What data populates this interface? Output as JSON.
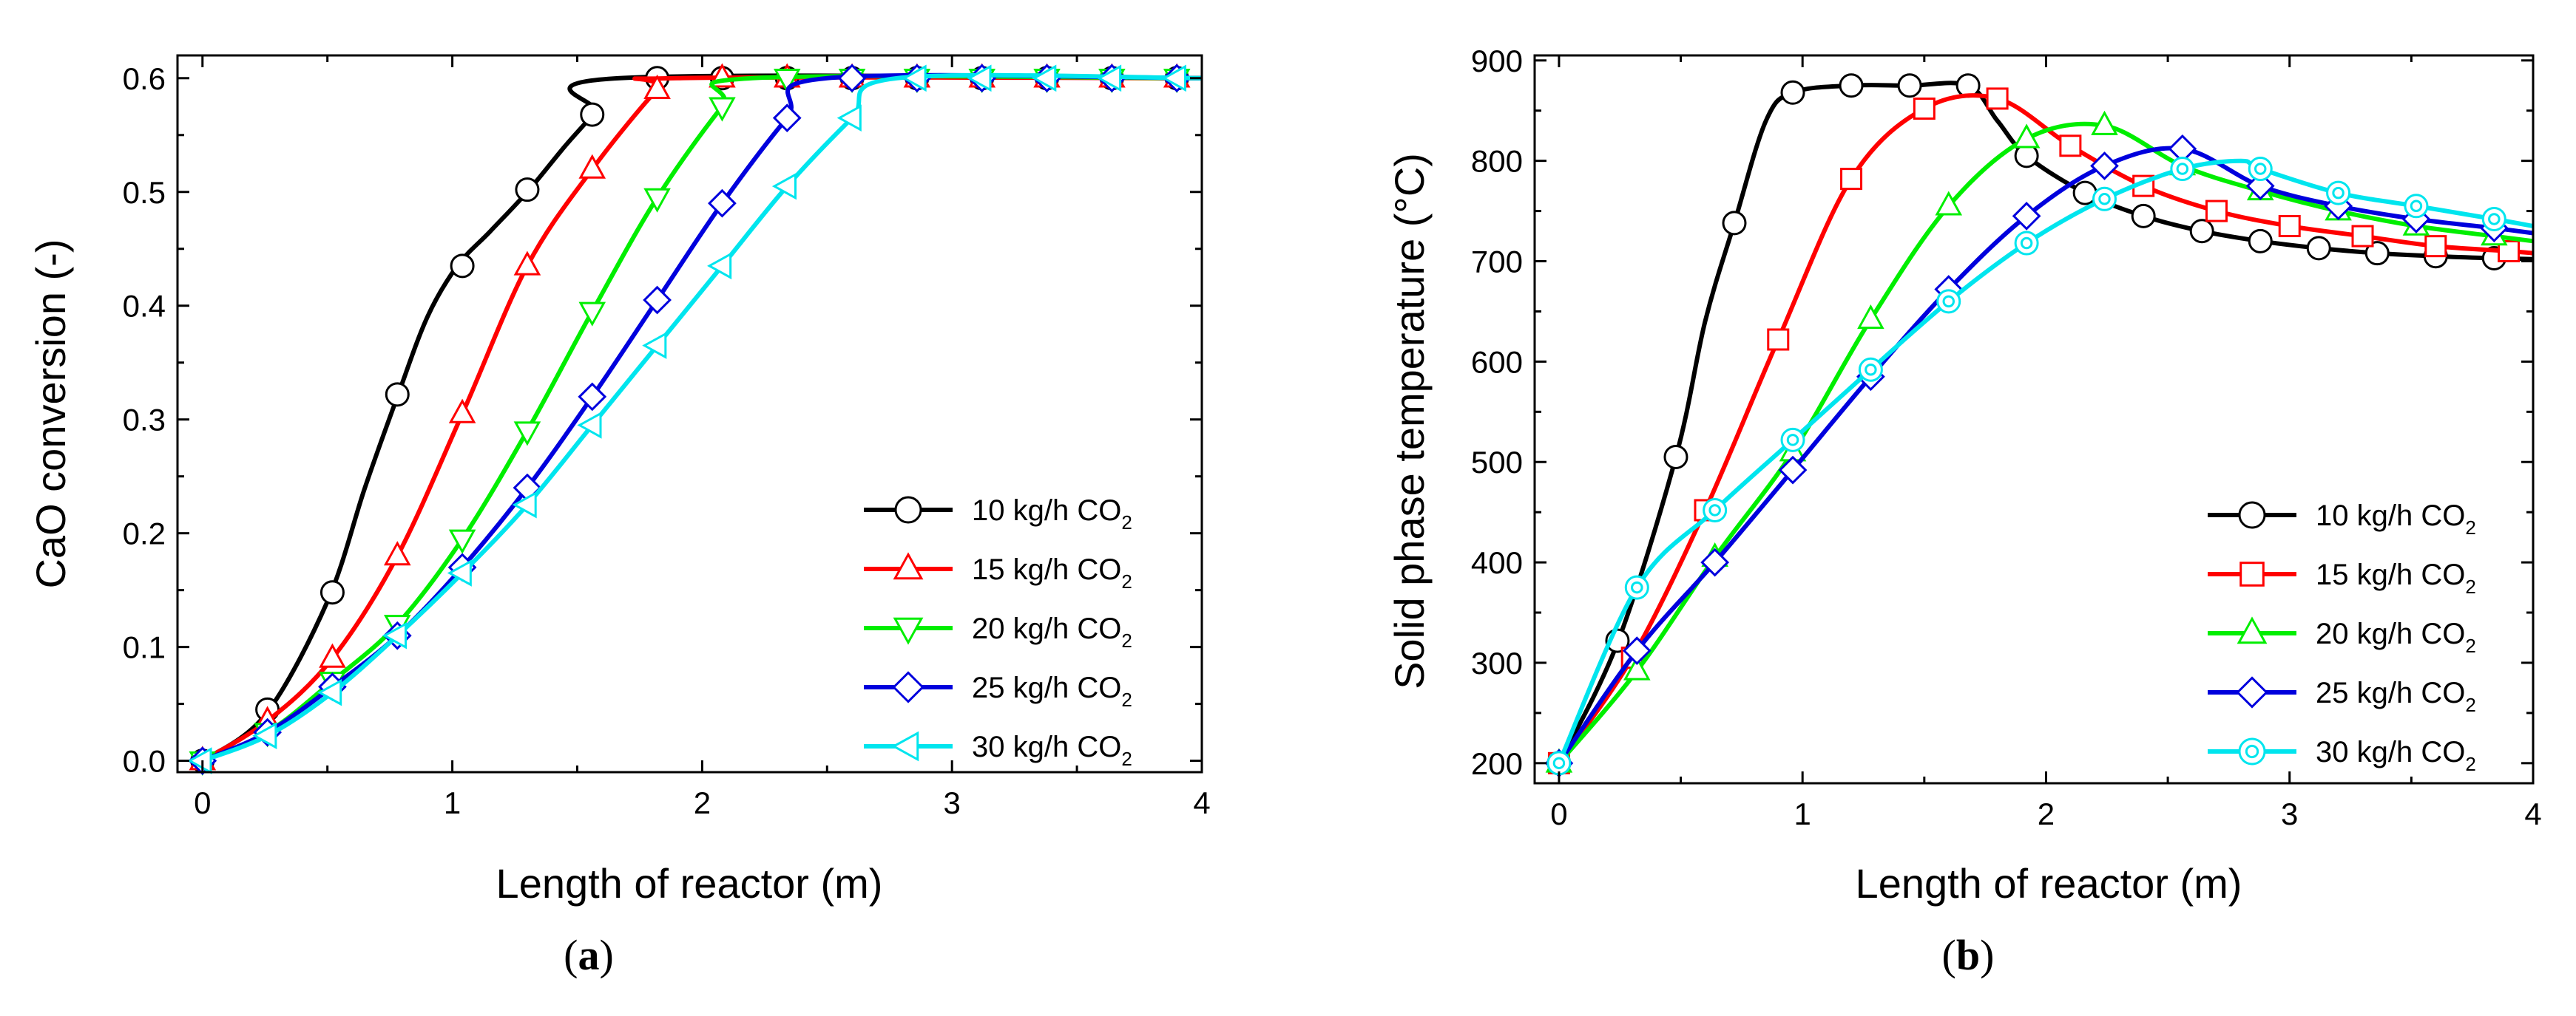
{
  "chart_data": [
    {
      "type": "line",
      "panel": "a",
      "panel_label": "a",
      "xlabel": "Length of reactor (m)",
      "ylabel": "CaO conversion (-)",
      "xlim": [
        -0.1,
        4.0
      ],
      "ylim": [
        -0.01,
        0.62
      ],
      "xticks": [
        0,
        1,
        2,
        3,
        4
      ],
      "xtick_labels": [
        "0",
        "1",
        "2",
        "3",
        "4"
      ],
      "yticks": [
        0.0,
        0.1,
        0.2,
        0.3,
        0.4,
        0.5,
        0.6
      ],
      "ytick_labels": [
        "0.0",
        "0.1",
        "0.2",
        "0.3",
        "0.4",
        "0.5",
        "0.6"
      ],
      "legend_position": "bottom-right",
      "series": [
        {
          "name": "10 kg/h CO",
          "name_sub": "2",
          "color": "#000000",
          "marker": "circle",
          "curve": [
            [
              0,
              0
            ],
            [
              0.25,
              0.04
            ],
            [
              0.5,
              0.14
            ],
            [
              0.65,
              0.24
            ],
            [
              0.78,
              0.32
            ],
            [
              0.9,
              0.39
            ],
            [
              1.02,
              0.435
            ],
            [
              1.15,
              0.465
            ],
            [
              1.3,
              0.5
            ],
            [
              1.45,
              0.54
            ],
            [
              1.57,
              0.57
            ],
            [
              1.67,
              0.6
            ],
            [
              4,
              0.6
            ]
          ],
          "marker_x": [
            0,
            0.26,
            0.52,
            0.78,
            1.04,
            1.3,
            1.56,
            1.82,
            2.08,
            2.34,
            2.6,
            2.86,
            3.12,
            3.38,
            3.64,
            3.9
          ],
          "marker_y": [
            0,
            0.045,
            0.148,
            0.322,
            0.435,
            0.502,
            0.568,
            0.6,
            0.6,
            0.6,
            0.6,
            0.6,
            0.6,
            0.6,
            0.6,
            0.6
          ]
        },
        {
          "name": "15 kg/h CO",
          "name_sub": "2",
          "color": "#ff0000",
          "marker": "triangle-up",
          "curve": [
            [
              0,
              0
            ],
            [
              0.26,
              0.035
            ],
            [
              0.52,
              0.09
            ],
            [
              0.78,
              0.18
            ],
            [
              1.04,
              0.305
            ],
            [
              1.3,
              0.435
            ],
            [
              1.56,
              0.52
            ],
            [
              1.82,
              0.59
            ],
            [
              1.9,
              0.6
            ],
            [
              4,
              0.6
            ]
          ],
          "marker_x": [
            0,
            0.26,
            0.52,
            0.78,
            1.04,
            1.3,
            1.56,
            1.82,
            2.08,
            2.34,
            2.6,
            2.86,
            3.12,
            3.38,
            3.64,
            3.9
          ],
          "marker_y": [
            0,
            0.035,
            0.09,
            0.18,
            0.305,
            0.435,
            0.52,
            0.59,
            0.6,
            0.6,
            0.6,
            0.6,
            0.6,
            0.6,
            0.6,
            0.6
          ]
        },
        {
          "name": "20 kg/h CO",
          "name_sub": "2",
          "color": "#00ee00",
          "marker": "triangle-down",
          "curve": [
            [
              0,
              0
            ],
            [
              0.26,
              0.025
            ],
            [
              0.52,
              0.07
            ],
            [
              0.78,
              0.12
            ],
            [
              1.04,
              0.195
            ],
            [
              1.3,
              0.29
            ],
            [
              1.56,
              0.395
            ],
            [
              1.82,
              0.495
            ],
            [
              2.08,
              0.575
            ],
            [
              2.2,
              0.6
            ],
            [
              4,
              0.6
            ]
          ],
          "marker_x": [
            0,
            0.26,
            0.52,
            0.78,
            1.04,
            1.3,
            1.56,
            1.82,
            2.08,
            2.34,
            2.6,
            2.86,
            3.12,
            3.38,
            3.64,
            3.9
          ],
          "marker_y": [
            0,
            0.025,
            0.07,
            0.12,
            0.195,
            0.29,
            0.395,
            0.495,
            0.575,
            0.6,
            0.6,
            0.6,
            0.6,
            0.6,
            0.6,
            0.6
          ]
        },
        {
          "name": "25 kg/h CO",
          "name_sub": "2",
          "color": "#0000dd",
          "marker": "diamond",
          "curve": [
            [
              0,
              0
            ],
            [
              0.26,
              0.025
            ],
            [
              0.52,
              0.065
            ],
            [
              0.78,
              0.11
            ],
            [
              1.04,
              0.17
            ],
            [
              1.3,
              0.24
            ],
            [
              1.56,
              0.32
            ],
            [
              1.82,
              0.405
            ],
            [
              2.08,
              0.49
            ],
            [
              2.34,
              0.565
            ],
            [
              2.5,
              0.6
            ],
            [
              4,
              0.6
            ]
          ],
          "marker_x": [
            0,
            0.26,
            0.52,
            0.78,
            1.04,
            1.3,
            1.56,
            1.82,
            2.08,
            2.34,
            2.6,
            2.86,
            3.12,
            3.38,
            3.64,
            3.9
          ],
          "marker_y": [
            0,
            0.025,
            0.065,
            0.11,
            0.17,
            0.24,
            0.32,
            0.405,
            0.49,
            0.565,
            0.6,
            0.6,
            0.6,
            0.6,
            0.6,
            0.6
          ]
        },
        {
          "name": "30 kg/h CO",
          "name_sub": "2",
          "color": "#00e5ee",
          "marker": "triangle-left",
          "curve": [
            [
              0,
              0
            ],
            [
              0.26,
              0.022
            ],
            [
              0.52,
              0.06
            ],
            [
              0.78,
              0.11
            ],
            [
              1.04,
              0.165
            ],
            [
              1.3,
              0.225
            ],
            [
              1.56,
              0.295
            ],
            [
              1.82,
              0.365
            ],
            [
              2.08,
              0.435
            ],
            [
              2.34,
              0.505
            ],
            [
              2.6,
              0.565
            ],
            [
              2.78,
              0.6
            ],
            [
              4,
              0.6
            ]
          ],
          "marker_x": [
            0,
            0.26,
            0.52,
            0.78,
            1.04,
            1.3,
            1.56,
            1.82,
            2.08,
            2.34,
            2.6,
            2.86,
            3.12,
            3.38,
            3.64,
            3.9
          ],
          "marker_y": [
            0,
            0.022,
            0.06,
            0.11,
            0.165,
            0.225,
            0.295,
            0.365,
            0.435,
            0.505,
            0.565,
            0.6,
            0.6,
            0.6,
            0.6,
            0.6
          ]
        }
      ]
    },
    {
      "type": "line",
      "panel": "b",
      "panel_label": "b",
      "xlabel": "Length of reactor (m)",
      "ylabel": "Solid phase temperature (°C)",
      "xlim": [
        -0.1,
        4.0
      ],
      "ylim": [
        180,
        905
      ],
      "xticks": [
        0,
        1,
        2,
        3,
        4
      ],
      "xtick_labels": [
        "0",
        "1",
        "2",
        "3",
        "4"
      ],
      "yticks": [
        200,
        300,
        400,
        500,
        600,
        700,
        800,
        900
      ],
      "ytick_labels": [
        "200",
        "300",
        "400",
        "500",
        "600",
        "700",
        "800",
        "900"
      ],
      "legend_position": "bottom-right",
      "series": [
        {
          "name": "10 kg/h CO",
          "name_sub": "2",
          "color": "#000000",
          "marker": "circle",
          "curve": [
            [
              0,
              200
            ],
            [
              0.24,
              320
            ],
            [
              0.48,
              505
            ],
            [
              0.6,
              640
            ],
            [
              0.72,
              738
            ],
            [
              0.85,
              840
            ],
            [
              0.96,
              868
            ],
            [
              1.2,
              875
            ],
            [
              1.44,
              875
            ],
            [
              1.68,
              875
            ],
            [
              1.8,
              840
            ],
            [
              1.92,
              805
            ],
            [
              2.16,
              768
            ],
            [
              2.4,
              745
            ],
            [
              2.64,
              730
            ],
            [
              2.88,
              720
            ],
            [
              3.12,
              713
            ],
            [
              3.36,
              708
            ],
            [
              3.6,
              705
            ],
            [
              3.84,
              703
            ],
            [
              4,
              702
            ]
          ],
          "marker_x": [
            0,
            0.24,
            0.48,
            0.72,
            0.96,
            1.2,
            1.44,
            1.68,
            1.92,
            2.16,
            2.4,
            2.64,
            2.88,
            3.12,
            3.36,
            3.6,
            3.84
          ],
          "marker_y": [
            200,
            322,
            505,
            738,
            868,
            875,
            875,
            875,
            805,
            768,
            745,
            730,
            720,
            713,
            708,
            705,
            703
          ]
        },
        {
          "name": "15 kg/h CO",
          "name_sub": "2",
          "color": "#ff0000",
          "marker": "square",
          "curve": [
            [
              0,
              200
            ],
            [
              0.3,
              305
            ],
            [
              0.6,
              452
            ],
            [
              0.9,
              622
            ],
            [
              1.2,
              782
            ],
            [
              1.5,
              852
            ],
            [
              1.8,
              862
            ],
            [
              2.1,
              815
            ],
            [
              2.4,
              775
            ],
            [
              2.7,
              750
            ],
            [
              3.0,
              735
            ],
            [
              3.3,
              725
            ],
            [
              3.6,
              715
            ],
            [
              3.9,
              710
            ],
            [
              4,
              708
            ]
          ],
          "marker_x": [
            0,
            0.3,
            0.6,
            0.9,
            1.2,
            1.5,
            1.8,
            2.1,
            2.4,
            2.7,
            3.0,
            3.3,
            3.6,
            3.9
          ],
          "marker_y": [
            200,
            305,
            452,
            622,
            782,
            852,
            862,
            815,
            775,
            750,
            735,
            725,
            715,
            710
          ]
        },
        {
          "name": "20 kg/h CO",
          "name_sub": "2",
          "color": "#00ee00",
          "marker": "triangle-up",
          "curve": [
            [
              0,
              200
            ],
            [
              0.32,
              292
            ],
            [
              0.64,
              405
            ],
            [
              0.96,
              510
            ],
            [
              1.28,
              642
            ],
            [
              1.6,
              755
            ],
            [
              1.92,
              822
            ],
            [
              2.24,
              835
            ],
            [
              2.56,
              795
            ],
            [
              2.88,
              770
            ],
            [
              3.2,
              750
            ],
            [
              3.52,
              735
            ],
            [
              3.84,
              725
            ],
            [
              4,
              720
            ]
          ],
          "marker_x": [
            0,
            0.32,
            0.64,
            0.96,
            1.28,
            1.6,
            1.92,
            2.24,
            2.56,
            2.88,
            3.2,
            3.52,
            3.84
          ],
          "marker_y": [
            200,
            292,
            405,
            510,
            642,
            755,
            822,
            835,
            795,
            770,
            750,
            735,
            725
          ]
        },
        {
          "name": "25 kg/h CO",
          "name_sub": "2",
          "color": "#0000dd",
          "marker": "diamond",
          "curve": [
            [
              0,
              200
            ],
            [
              0.32,
              312
            ],
            [
              0.64,
              400
            ],
            [
              0.96,
              492
            ],
            [
              1.28,
              585
            ],
            [
              1.6,
              672
            ],
            [
              1.92,
              745
            ],
            [
              2.24,
              795
            ],
            [
              2.56,
              812
            ],
            [
              2.88,
              775
            ],
            [
              3.2,
              755
            ],
            [
              3.52,
              742
            ],
            [
              3.84,
              733
            ],
            [
              4,
              728
            ]
          ],
          "marker_x": [
            0,
            0.32,
            0.64,
            0.96,
            1.28,
            1.6,
            1.92,
            2.24,
            2.56,
            2.88,
            3.2,
            3.52,
            3.84
          ],
          "marker_y": [
            200,
            312,
            400,
            492,
            585,
            672,
            745,
            795,
            812,
            775,
            755,
            742,
            733
          ]
        },
        {
          "name": "30 kg/h CO",
          "name_sub": "2",
          "color": "#00e5ee",
          "marker": "circle-dot",
          "curve": [
            [
              0,
              200
            ],
            [
              0.32,
              375
            ],
            [
              0.64,
              452
            ],
            [
              0.96,
              522
            ],
            [
              1.28,
              592
            ],
            [
              1.6,
              660
            ],
            [
              1.92,
              718
            ],
            [
              2.24,
              762
            ],
            [
              2.56,
              792
            ],
            [
              2.8,
              800
            ],
            [
              2.88,
              792
            ],
            [
              3.2,
              768
            ],
            [
              3.52,
              755
            ],
            [
              3.84,
              742
            ],
            [
              4,
              735
            ]
          ],
          "marker_x": [
            0,
            0.32,
            0.64,
            0.96,
            1.28,
            1.6,
            1.92,
            2.24,
            2.56,
            2.88,
            3.2,
            3.52,
            3.84
          ],
          "marker_y": [
            200,
            375,
            452,
            522,
            592,
            660,
            718,
            762,
            792,
            792,
            768,
            755,
            742
          ]
        }
      ]
    }
  ]
}
